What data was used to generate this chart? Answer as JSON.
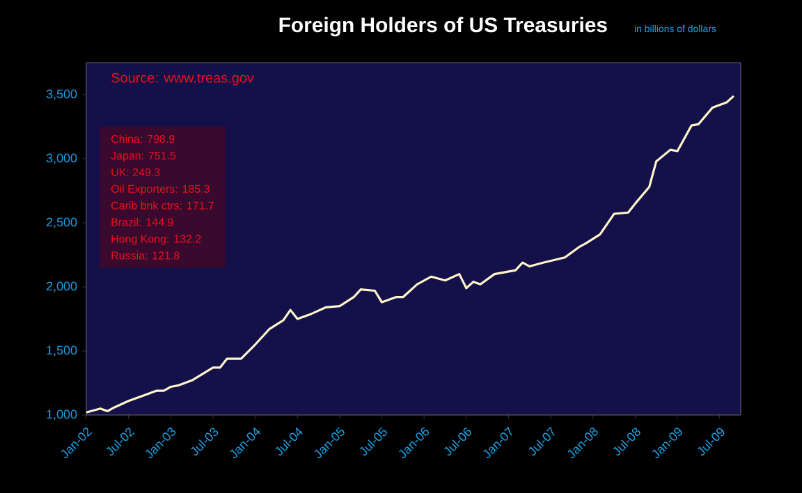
{
  "chart_data": {
    "type": "line",
    "title": "Foreign Holders of US Treasuries",
    "subtitle": "in billions of dollars",
    "annotations": [
      "Source: www.treas.gov",
      "China:  798.9",
      "Japan:  751.5",
      "UK: 249.3",
      "Oil Exporters:  185.3",
      "Carib bnk ctrs:  171.7",
      "Brazil:  144.9",
      "Hong Kong:  132.2",
      "Russia:  121.8"
    ],
    "x": [
      "2002-01",
      "2002-03",
      "2002-04",
      "2002-05",
      "2002-07",
      "2002-09",
      "2002-11",
      "2002-12",
      "2003-01",
      "2003-02",
      "2003-04",
      "2003-07",
      "2003-08",
      "2003-09",
      "2003-11",
      "2004-01",
      "2004-03",
      "2004-05",
      "2004-06",
      "2004-07",
      "2004-09",
      "2004-11",
      "2005-01",
      "2005-03",
      "2005-04",
      "2005-06",
      "2005-07",
      "2005-09",
      "2005-10",
      "2005-12",
      "2006-02",
      "2006-04",
      "2006-06",
      "2006-07",
      "2006-08",
      "2006-09",
      "2006-11",
      "2007-02",
      "2007-03",
      "2007-04",
      "2007-06",
      "2007-09",
      "2007-11",
      "2007-12",
      "2008-02",
      "2008-04",
      "2008-06",
      "2008-07",
      "2008-09",
      "2008-10",
      "2008-12",
      "2009-01",
      "2009-03",
      "2009-04",
      "2009-06",
      "2009-08",
      "2009-09"
    ],
    "series": [
      {
        "color": "#fff5c8",
        "values": [
          1020,
          1050,
          1030,
          1060,
          1110,
          1150,
          1190,
          1190,
          1220,
          1230,
          1270,
          1370,
          1370,
          1440,
          1440,
          1550,
          1670,
          1740,
          1820,
          1750,
          1790,
          1840,
          1850,
          1920,
          1980,
          1970,
          1880,
          1920,
          1920,
          2020,
          2080,
          2050,
          2100,
          1990,
          2040,
          2020,
          2100,
          2130,
          2190,
          2160,
          2190,
          2230,
          2310,
          2340,
          2410,
          2570,
          2580,
          2650,
          2780,
          2980,
          3070,
          3060,
          3260,
          3270,
          3400,
          3440,
          3490
        ]
      }
    ],
    "xlim": [
      "2002-01",
      "2009-10"
    ],
    "xticks": [
      {
        "value": "2002-01",
        "label": "Jan-02"
      },
      {
        "value": "2002-07",
        "label": "Jul-02"
      },
      {
        "value": "2003-01",
        "label": "Jan-03"
      },
      {
        "value": "2003-07",
        "label": "Jul-03"
      },
      {
        "value": "2004-01",
        "label": "Jan-04"
      },
      {
        "value": "2004-07",
        "label": "Jul-04"
      },
      {
        "value": "2005-01",
        "label": "Jan-05"
      },
      {
        "value": "2005-07",
        "label": "Jul-05"
      },
      {
        "value": "2006-01",
        "label": "Jan-06"
      },
      {
        "value": "2006-07",
        "label": "Jul-06"
      },
      {
        "value": "2007-01",
        "label": "Jan-07"
      },
      {
        "value": "2007-07",
        "label": "Jul-07"
      },
      {
        "value": "2008-01",
        "label": "Jan-08"
      },
      {
        "value": "2008-07",
        "label": "Jul-08"
      },
      {
        "value": "2009-01",
        "label": "Jan-09"
      },
      {
        "value": "2009-07",
        "label": "Jul-09"
      }
    ],
    "ylim": [
      1000,
      3750
    ],
    "yticks": [
      {
        "value": 1000,
        "label": "1,000"
      },
      {
        "value": 1500,
        "label": "1,500"
      },
      {
        "value": 2000,
        "label": "2,000"
      },
      {
        "value": 2500,
        "label": "2,500"
      },
      {
        "value": 3000,
        "label": "3,000"
      },
      {
        "value": 3500,
        "label": "3,500"
      }
    ],
    "grid": false,
    "marker": "none",
    "line_style": "solid"
  }
}
